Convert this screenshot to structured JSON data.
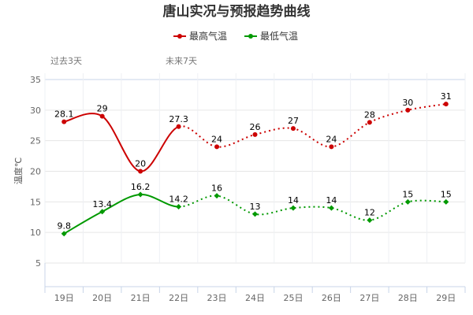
{
  "chart_data": {
    "type": "line",
    "title": "唐山实况与预报趋势曲线",
    "ylabel": "温度℃",
    "xlabel": "",
    "categories": [
      "19日",
      "20日",
      "21日",
      "22日",
      "23日",
      "24日",
      "25日",
      "26日",
      "27日",
      "28日",
      "29日"
    ],
    "yticks": [
      5,
      10,
      15,
      20,
      25,
      30,
      35
    ],
    "ylim": [
      0,
      35
    ],
    "grid": true,
    "legend_position": "top-center",
    "period_labels": {
      "past": "过去3天",
      "future": "未来7天"
    },
    "series": [
      {
        "name": "最高气温",
        "color": "#cc0000",
        "values": [
          28.1,
          29,
          20,
          27.3,
          24,
          26,
          27,
          24,
          28,
          30,
          31
        ]
      },
      {
        "name": "最低气温",
        "color": "#009900",
        "values": [
          9.8,
          13.4,
          16.2,
          14.2,
          16,
          13,
          14,
          14,
          12,
          15,
          15
        ]
      }
    ],
    "solid_until_index": 3
  }
}
